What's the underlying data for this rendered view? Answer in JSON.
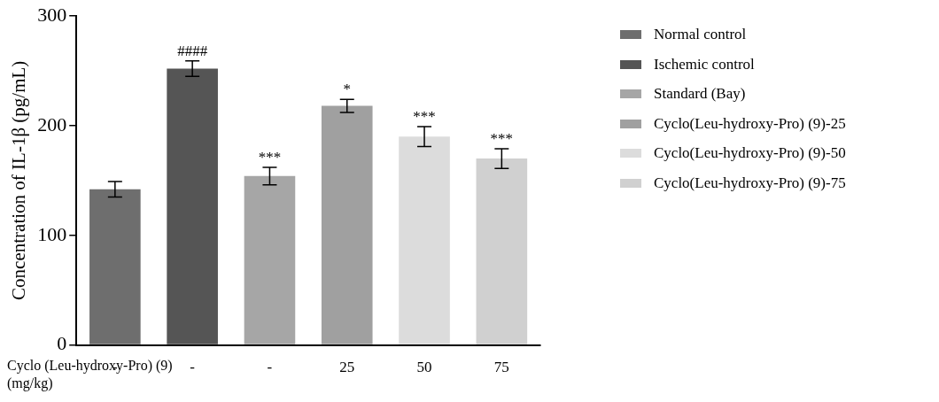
{
  "chart_data": {
    "type": "bar",
    "ylabel": "Concentration of IL-1β (pg/mL)",
    "xlabel": "Cyclo (Leu-hydroxy-Pro) (9) (mg/kg)",
    "categories": [
      "-",
      "-",
      "-",
      "25",
      "50",
      "75"
    ],
    "series": [
      {
        "name": "Normal control",
        "color": "#6e6e6e",
        "values": [
          142,
          null,
          null,
          null,
          null,
          null
        ],
        "errors": [
          7,
          null,
          null,
          null,
          null,
          null
        ],
        "value_labels": [
          null,
          null,
          null,
          null,
          null,
          null
        ]
      },
      {
        "name": "Ischemic control",
        "color": "#555555",
        "values": [
          null,
          252,
          null,
          null,
          null,
          null
        ],
        "errors": [
          null,
          7,
          null,
          null,
          null,
          null
        ],
        "value_labels": [
          null,
          "####",
          null,
          null,
          null,
          null
        ]
      },
      {
        "name": "Standard (Bay)",
        "color": "#a6a6a6",
        "values": [
          null,
          null,
          154,
          null,
          null,
          null
        ],
        "errors": [
          null,
          null,
          8,
          null,
          null,
          null
        ],
        "value_labels": [
          null,
          null,
          "***",
          null,
          null,
          null
        ]
      },
      {
        "name": "Cyclo(Leu-hydroxy-Pro) (9)-25",
        "color": "#a0a0a0",
        "values": [
          null,
          null,
          null,
          218,
          null,
          null
        ],
        "errors": [
          null,
          null,
          null,
          6,
          null,
          null
        ],
        "value_labels": [
          null,
          null,
          null,
          "*",
          null,
          null
        ]
      },
      {
        "name": "Cyclo(Leu-hydroxy-Pro) (9)-50",
        "color": "#dcdcdc",
        "values": [
          null,
          null,
          null,
          null,
          190,
          null
        ],
        "errors": [
          null,
          null,
          null,
          null,
          9,
          null
        ],
        "value_labels": [
          null,
          null,
          null,
          null,
          "***",
          null
        ]
      },
      {
        "name": "Cyclo(Leu-hydroxy-Pro) (9)-75",
        "color": "#d0d0d0",
        "values": [
          null,
          null,
          null,
          null,
          null,
          170
        ],
        "errors": [
          null,
          null,
          null,
          null,
          null,
          9
        ],
        "value_labels": [
          null,
          null,
          null,
          null,
          null,
          "***"
        ]
      }
    ],
    "ylim": [
      0,
      300
    ],
    "yticks": [
      0,
      100,
      200,
      300
    ],
    "grid": false,
    "legend": "right"
  }
}
